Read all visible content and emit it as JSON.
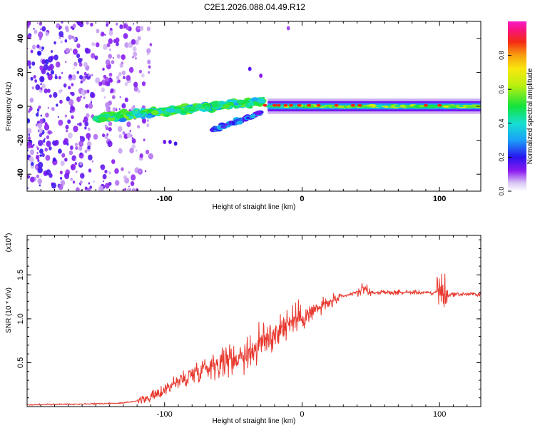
{
  "title": "C2E1.2026.088.04.49.R12",
  "chart_data": [
    {
      "type": "heatmap",
      "name": "spectrogram",
      "xlabel": "Height of straight line (km)",
      "ylabel": "Frequency (Hz)",
      "xlim": [
        -200,
        130
      ],
      "ylim": [
        -50,
        50
      ],
      "xticks": [
        -100,
        0,
        100
      ],
      "xtick_labels": [
        "-100",
        "0",
        "100"
      ],
      "yticks": [
        -40,
        -20,
        0,
        20,
        40
      ],
      "ytick_labels": [
        "-40",
        "-20",
        "0",
        "20",
        "40"
      ],
      "colorbar": {
        "label": "Normalized spectral amplitude",
        "range": [
          0,
          1
        ],
        "ticks": [
          0.0,
          0.2,
          0.4,
          0.6,
          0.8
        ],
        "tick_labels": [
          "0.0",
          "0.2",
          "0.4",
          "0.6",
          "0.8"
        ]
      },
      "features": [
        {
          "segment": "diffuse noise",
          "x_range": [
            -200,
            -110
          ],
          "amplitude": 0.1
        },
        {
          "segment": "rising trace",
          "x_range": [
            -150,
            -30
          ],
          "freq_start": -7,
          "freq_end": 3,
          "amplitude": 0.35
        },
        {
          "segment": "lower branch",
          "x_range": [
            -65,
            -30
          ],
          "freq_start": -14,
          "freq_end": -4,
          "amplitude": 0.3
        },
        {
          "segment": "stable trace",
          "x_range": [
            -25,
            130
          ],
          "freq": 0,
          "amplitude": 0.55
        }
      ]
    },
    {
      "type": "line",
      "name": "snr",
      "xlabel": "Height of straight line (km)",
      "ylabel": "SNR (10 * v/v)",
      "scale_label": "(x10",
      "scale_exponent": "4",
      "scale_close": ")",
      "xlim": [
        -200,
        130
      ],
      "ylim": [
        0,
        1.95
      ],
      "xticks": [
        -100,
        0,
        100
      ],
      "xtick_labels": [
        "-100",
        "0",
        "100"
      ],
      "yticks": [
        0.5,
        1.0,
        1.5
      ],
      "ytick_labels": [
        "0.5",
        "1.0",
        "1.5"
      ],
      "color": "#e8392f",
      "series": [
        {
          "name": "SNR",
          "x": [
            -200,
            -160,
            -130,
            -115,
            -105,
            -95,
            -85,
            -75,
            -65,
            -55,
            -45,
            -35,
            -25,
            -15,
            -5,
            5,
            15,
            25,
            35,
            40,
            45,
            50,
            60,
            70,
            80,
            90,
            95,
            100,
            103,
            105,
            110,
            120,
            130
          ],
          "values": [
            0.02,
            0.03,
            0.04,
            0.08,
            0.14,
            0.25,
            0.32,
            0.42,
            0.48,
            0.52,
            0.58,
            0.65,
            0.78,
            0.9,
            1.0,
            1.05,
            1.15,
            1.22,
            1.28,
            1.3,
            1.35,
            1.3,
            1.3,
            1.3,
            1.3,
            1.3,
            1.28,
            1.35,
            1.28,
            1.27,
            1.28,
            1.28,
            1.28
          ]
        }
      ]
    }
  ]
}
